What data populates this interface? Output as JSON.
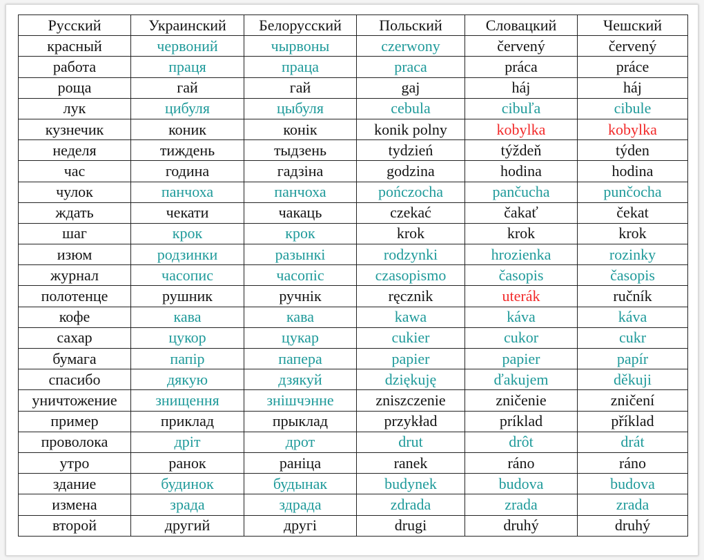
{
  "table": {
    "header": [
      "Русский",
      "Украинский",
      "Белорусский",
      "Польский",
      "Словацкий",
      "Чешский"
    ],
    "palette": {
      "black": "#141414",
      "teal": "#1f9a9a",
      "red": "#f22a2a"
    },
    "rows": [
      [
        {
          "text": "красный",
          "color": "black"
        },
        {
          "text": "червоний",
          "color": "teal"
        },
        {
          "text": "чырвоны",
          "color": "teal"
        },
        {
          "text": "czerwony",
          "color": "teal"
        },
        {
          "text": "červený",
          "color": "black"
        },
        {
          "text": "červený",
          "color": "black"
        }
      ],
      [
        {
          "text": "работа",
          "color": "black"
        },
        {
          "text": "праця",
          "color": "teal"
        },
        {
          "text": "праца",
          "color": "teal"
        },
        {
          "text": "praca",
          "color": "teal"
        },
        {
          "text": "práca",
          "color": "black"
        },
        {
          "text": "práce",
          "color": "black"
        }
      ],
      [
        {
          "text": "роща",
          "color": "black"
        },
        {
          "text": "гай",
          "color": "black"
        },
        {
          "text": "гай",
          "color": "black"
        },
        {
          "text": "gaj",
          "color": "black"
        },
        {
          "text": "háj",
          "color": "black"
        },
        {
          "text": "háj",
          "color": "black"
        }
      ],
      [
        {
          "text": "лук",
          "color": "black"
        },
        {
          "text": "цибуля",
          "color": "teal"
        },
        {
          "text": "цыбуля",
          "color": "teal"
        },
        {
          "text": "cebula",
          "color": "teal"
        },
        {
          "text": "cibuľa",
          "color": "teal"
        },
        {
          "text": "cibule",
          "color": "teal"
        }
      ],
      [
        {
          "text": "кузнечик",
          "color": "black"
        },
        {
          "text": "коник",
          "color": "black"
        },
        {
          "text": "конік",
          "color": "black"
        },
        {
          "text": "konik polny",
          "color": "black"
        },
        {
          "text": "kobylka",
          "color": "red"
        },
        {
          "text": "kobylka",
          "color": "red"
        }
      ],
      [
        {
          "text": "неделя",
          "color": "black"
        },
        {
          "text": "тиждень",
          "color": "black"
        },
        {
          "text": "тыдзень",
          "color": "black"
        },
        {
          "text": "tydzień",
          "color": "black"
        },
        {
          "text": "týždeň",
          "color": "black"
        },
        {
          "text": "týden",
          "color": "black"
        }
      ],
      [
        {
          "text": "час",
          "color": "black"
        },
        {
          "text": "година",
          "color": "black"
        },
        {
          "text": "гадзіна",
          "color": "black"
        },
        {
          "text": "godzina",
          "color": "black"
        },
        {
          "text": "hodina",
          "color": "black"
        },
        {
          "text": "hodina",
          "color": "black"
        }
      ],
      [
        {
          "text": "чулок",
          "color": "black"
        },
        {
          "text": "панчоха",
          "color": "teal"
        },
        {
          "text": "панчоха",
          "color": "teal"
        },
        {
          "text": "pończocha",
          "color": "teal"
        },
        {
          "text": "pančucha",
          "color": "teal"
        },
        {
          "text": "punčocha",
          "color": "teal"
        }
      ],
      [
        {
          "text": "ждать",
          "color": "black"
        },
        {
          "text": "чекати",
          "color": "black"
        },
        {
          "text": "чакаць",
          "color": "black"
        },
        {
          "text": "czekać",
          "color": "black"
        },
        {
          "text": "čakať",
          "color": "black"
        },
        {
          "text": "čekat",
          "color": "black"
        }
      ],
      [
        {
          "text": "шаг",
          "color": "black"
        },
        {
          "text": "крок",
          "color": "teal"
        },
        {
          "text": "крок",
          "color": "teal"
        },
        {
          "text": "krok",
          "color": "black"
        },
        {
          "text": "krok",
          "color": "black"
        },
        {
          "text": "krok",
          "color": "black"
        }
      ],
      [
        {
          "text": "изюм",
          "color": "black"
        },
        {
          "text": "родзинки",
          "color": "teal"
        },
        {
          "text": "разынкі",
          "color": "teal"
        },
        {
          "text": "rodzynki",
          "color": "teal"
        },
        {
          "text": "hrozienka",
          "color": "teal"
        },
        {
          "text": "rozinky",
          "color": "teal"
        }
      ],
      [
        {
          "text": "журнал",
          "color": "black"
        },
        {
          "text": "часопис",
          "color": "teal"
        },
        {
          "text": "часопіс",
          "color": "teal"
        },
        {
          "text": "czasopismo",
          "color": "teal"
        },
        {
          "text": "časopis",
          "color": "teal"
        },
        {
          "text": "časopis",
          "color": "teal"
        }
      ],
      [
        {
          "text": "полотенце",
          "color": "black"
        },
        {
          "text": "рушник",
          "color": "black"
        },
        {
          "text": "ручнік",
          "color": "black"
        },
        {
          "text": "ręcznik",
          "color": "black"
        },
        {
          "text": "uterák",
          "color": "red"
        },
        {
          "text": "ručník",
          "color": "black"
        }
      ],
      [
        {
          "text": "кофе",
          "color": "black"
        },
        {
          "text": "кава",
          "color": "teal"
        },
        {
          "text": "кава",
          "color": "teal"
        },
        {
          "text": "kawa",
          "color": "teal"
        },
        {
          "text": "káva",
          "color": "teal"
        },
        {
          "text": "káva",
          "color": "teal"
        }
      ],
      [
        {
          "text": "сахар",
          "color": "black"
        },
        {
          "text": "цукор",
          "color": "teal"
        },
        {
          "text": "цукар",
          "color": "teal"
        },
        {
          "text": "cukier",
          "color": "teal"
        },
        {
          "text": "cukor",
          "color": "teal"
        },
        {
          "text": "cukr",
          "color": "teal"
        }
      ],
      [
        {
          "text": "бумага",
          "color": "black"
        },
        {
          "text": "папір",
          "color": "teal"
        },
        {
          "text": "папера",
          "color": "teal"
        },
        {
          "text": "papier",
          "color": "teal"
        },
        {
          "text": "papier",
          "color": "teal"
        },
        {
          "text": "papír",
          "color": "teal"
        }
      ],
      [
        {
          "text": "спасибо",
          "color": "black"
        },
        {
          "text": "дякую",
          "color": "teal"
        },
        {
          "text": "дзякуй",
          "color": "teal"
        },
        {
          "text": "dziękuję",
          "color": "teal"
        },
        {
          "text": "ďakujem",
          "color": "teal"
        },
        {
          "text": "děkuji",
          "color": "teal"
        }
      ],
      [
        {
          "text": "уничтожение",
          "color": "black"
        },
        {
          "text": "знищення",
          "color": "teal"
        },
        {
          "text": "знішчэнне",
          "color": "teal"
        },
        {
          "text": "zniszczenie",
          "color": "black"
        },
        {
          "text": "zničenie",
          "color": "black"
        },
        {
          "text": "zničení",
          "color": "black"
        }
      ],
      [
        {
          "text": "пример",
          "color": "black"
        },
        {
          "text": "приклад",
          "color": "black"
        },
        {
          "text": "прыклад",
          "color": "black"
        },
        {
          "text": "przykład",
          "color": "black"
        },
        {
          "text": "príklad",
          "color": "black"
        },
        {
          "text": "příklad",
          "color": "black"
        }
      ],
      [
        {
          "text": "проволока",
          "color": "black"
        },
        {
          "text": "дріт",
          "color": "teal"
        },
        {
          "text": "дрот",
          "color": "teal"
        },
        {
          "text": "drut",
          "color": "teal"
        },
        {
          "text": "drôt",
          "color": "teal"
        },
        {
          "text": "drát",
          "color": "teal"
        }
      ],
      [
        {
          "text": "утро",
          "color": "black"
        },
        {
          "text": "ранок",
          "color": "black"
        },
        {
          "text": "раніца",
          "color": "black"
        },
        {
          "text": "ranek",
          "color": "black"
        },
        {
          "text": "ráno",
          "color": "black"
        },
        {
          "text": "ráno",
          "color": "black"
        }
      ],
      [
        {
          "text": "здание",
          "color": "black"
        },
        {
          "text": "будинок",
          "color": "teal"
        },
        {
          "text": "будынак",
          "color": "teal"
        },
        {
          "text": "budynek",
          "color": "teal"
        },
        {
          "text": "budova",
          "color": "teal"
        },
        {
          "text": "budova",
          "color": "teal"
        }
      ],
      [
        {
          "text": "измена",
          "color": "black"
        },
        {
          "text": "зрада",
          "color": "teal"
        },
        {
          "text": "здрада",
          "color": "teal"
        },
        {
          "text": "zdrada",
          "color": "teal"
        },
        {
          "text": "zrada",
          "color": "teal"
        },
        {
          "text": "zrada",
          "color": "teal"
        }
      ],
      [
        {
          "text": "второй",
          "color": "black"
        },
        {
          "text": "другий",
          "color": "black"
        },
        {
          "text": "другі",
          "color": "black"
        },
        {
          "text": "drugi",
          "color": "black"
        },
        {
          "text": "druhý",
          "color": "black"
        },
        {
          "text": "druhý",
          "color": "black"
        }
      ]
    ]
  }
}
